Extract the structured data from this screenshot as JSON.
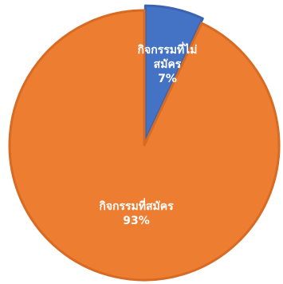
{
  "chart_data": {
    "type": "pie",
    "title": "",
    "categories": [
      "กิจกรรมที่ไม่สมัคร",
      "กิจกรรมที่สมัคร"
    ],
    "values": [
      7,
      93
    ],
    "colors": [
      "#4472C4",
      "#ED7D31"
    ],
    "edge_colors": [
      "#3A64AE",
      "#D86B24"
    ],
    "start_angle_deg": 0,
    "direction": "clockwise",
    "exploded_slice": "กิจกรรมที่ไม่สมัคร",
    "data_labels": [
      {
        "lines": [
          "กิจกรรมที่ไม่",
          "สมัคร"
        ],
        "value_text": "7%"
      },
      {
        "lines": [
          "กิจกรรมที่สมัคร"
        ],
        "value_text": "93%"
      }
    ],
    "legend": "none"
  }
}
